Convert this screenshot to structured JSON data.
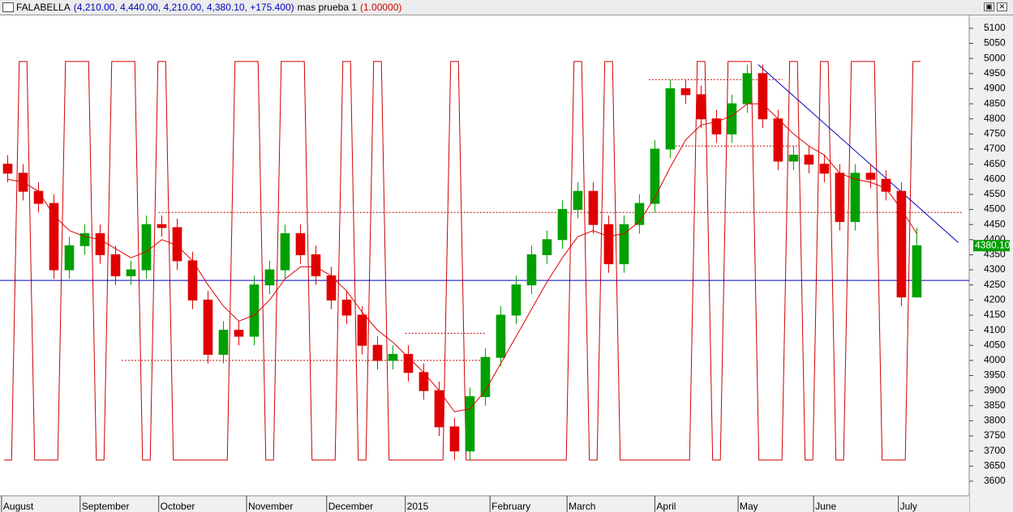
{
  "chart_data": {
    "type": "candlestick",
    "title": "FALABELLA",
    "ohlc_text": "(4,210.00, 4,440.00, 4,210.00, 4,380.10, +175.400)",
    "indicator_name": "mas prueba 1",
    "indicator_value": "(1.00000)",
    "open": [
      4650,
      4620,
      4560,
      4520,
      4300,
      4380,
      4420,
      4350,
      4280,
      4300,
      4450,
      4440,
      4330,
      4200,
      4020,
      4100,
      4080,
      4250,
      4300,
      4420,
      4350,
      4280,
      4200,
      4150,
      4050,
      4000,
      4020,
      3960,
      3900,
      3780,
      3700,
      3880,
      4010,
      4150,
      4250,
      4350,
      4400,
      4500,
      4560,
      4450,
      4320,
      4450,
      4520,
      4700,
      4900,
      4880,
      4800,
      4750,
      4850,
      4950,
      4800,
      4660,
      4680,
      4650,
      4620,
      4460,
      4620,
      4600,
      4560,
      4210
    ],
    "high": [
      4680,
      4650,
      4590,
      4550,
      4410,
      4450,
      4450,
      4380,
      4330,
      4480,
      4480,
      4470,
      4360,
      4230,
      4130,
      4130,
      4280,
      4330,
      4450,
      4450,
      4380,
      4310,
      4230,
      4180,
      4080,
      4050,
      4050,
      3990,
      3930,
      3810,
      3910,
      4040,
      4180,
      4280,
      4380,
      4430,
      4530,
      4590,
      4590,
      4480,
      4480,
      4550,
      4730,
      4930,
      4930,
      4910,
      4830,
      4880,
      4980,
      4980,
      4830,
      4710,
      4710,
      4680,
      4650,
      4650,
      4650,
      4630,
      4590,
      4440
    ],
    "low": [
      4590,
      4530,
      4490,
      4270,
      4270,
      4350,
      4320,
      4250,
      4250,
      4270,
      4410,
      4300,
      4170,
      3990,
      3990,
      4050,
      4050,
      4220,
      4270,
      4320,
      4250,
      4170,
      4120,
      4020,
      3970,
      3970,
      3930,
      3870,
      3750,
      3670,
      3670,
      3850,
      3980,
      4120,
      4220,
      4320,
      4370,
      4470,
      4420,
      4290,
      4290,
      4420,
      4490,
      4670,
      4850,
      4770,
      4720,
      4720,
      4820,
      4770,
      4630,
      4630,
      4620,
      4590,
      4430,
      4430,
      4570,
      4530,
      4180,
      4210
    ],
    "close": [
      4620,
      4560,
      4520,
      4300,
      4380,
      4420,
      4350,
      4280,
      4300,
      4450,
      4440,
      4330,
      4200,
      4020,
      4100,
      4080,
      4250,
      4300,
      4420,
      4350,
      4280,
      4200,
      4150,
      4050,
      4000,
      4020,
      3960,
      3900,
      3780,
      3700,
      3880,
      4010,
      4150,
      4250,
      4350,
      4400,
      4500,
      4560,
      4450,
      4320,
      4450,
      4520,
      4700,
      4900,
      4880,
      4800,
      4750,
      4850,
      4950,
      4800,
      4660,
      4680,
      4650,
      4620,
      4460,
      4620,
      4600,
      4560,
      4210,
      4380
    ],
    "up_color": "#00a000",
    "down_color": "#e00000",
    "ma": {
      "color": "#e00000",
      "values": [
        4600,
        4590,
        4560,
        4480,
        4430,
        4410,
        4400,
        4370,
        4340,
        4360,
        4400,
        4380,
        4330,
        4250,
        4180,
        4130,
        4150,
        4200,
        4270,
        4310,
        4310,
        4280,
        4230,
        4160,
        4100,
        4060,
        4010,
        3960,
        3900,
        3830,
        3840,
        3900,
        3990,
        4080,
        4170,
        4260,
        4340,
        4410,
        4430,
        4410,
        4420,
        4460,
        4540,
        4640,
        4730,
        4780,
        4790,
        4810,
        4850,
        4850,
        4800,
        4750,
        4710,
        4680,
        4620,
        4600,
        4590,
        4570,
        4500,
        4420
      ]
    },
    "signal": {
      "color": "#d00000",
      "values": [
        3670,
        4990,
        3670,
        3670,
        4990,
        4990,
        3670,
        4990,
        4990,
        3670,
        4990,
        3670,
        3670,
        3670,
        3670,
        4990,
        4990,
        3670,
        4990,
        4990,
        3670,
        3670,
        4990,
        3670,
        4990,
        3670,
        3670,
        3670,
        3670,
        4990,
        3670,
        3670,
        3670,
        3670,
        3670,
        3670,
        3670,
        4990,
        3670,
        4990,
        3670,
        3670,
        3670,
        3670,
        3670,
        4990,
        3670,
        4990,
        4990,
        3670,
        3670,
        4990,
        3670,
        4990,
        3670,
        4990,
        4990,
        3670,
        3670,
        4990
      ]
    },
    "xlim": [
      -0.5,
      62.4
    ],
    "ylim": [
      3557,
      5140
    ],
    "yticks": [
      3600,
      3650,
      3700,
      3750,
      3800,
      3850,
      3900,
      3950,
      4000,
      4050,
      4100,
      4150,
      4200,
      4250,
      4300,
      4350,
      4400,
      4450,
      4500,
      4550,
      4600,
      4650,
      4700,
      4750,
      4800,
      4850,
      4900,
      4950,
      5000,
      5050,
      5100
    ],
    "xticks": [
      {
        "value": -0.4,
        "label": "August"
      },
      {
        "value": 4.7,
        "label": "September"
      },
      {
        "value": 9.8,
        "label": "October"
      },
      {
        "value": 15.5,
        "label": "November"
      },
      {
        "value": 20.7,
        "label": "December"
      },
      {
        "value": 25.8,
        "label": "2015"
      },
      {
        "value": 31.3,
        "label": "February"
      },
      {
        "value": 36.3,
        "label": "March"
      },
      {
        "value": 42.0,
        "label": "April"
      },
      {
        "value": 47.4,
        "label": "May"
      },
      {
        "value": 52.3,
        "label": "June"
      },
      {
        "value": 57.8,
        "label": "July"
      }
    ],
    "hline": {
      "value": 4265,
      "color": "#0000c0"
    },
    "levels": [
      {
        "value": 4490,
        "xrange": [
          9.8,
          62.0
        ]
      },
      {
        "value": 4000,
        "xrange": [
          7.4,
          31.0
        ]
      },
      {
        "value": 4930,
        "xrange": [
          41.6,
          50.3
        ]
      },
      {
        "value": 4090,
        "xrange": [
          25.8,
          31.0
        ]
      },
      {
        "value": 4710,
        "xrange": [
          42.7,
          51.4
        ]
      }
    ],
    "level_color": "#c00000",
    "trendline": {
      "x": [
        48.7,
        61.7
      ],
      "y": [
        4980,
        4390
      ],
      "color": "#0000c0"
    },
    "last_price": {
      "value": 4380.1,
      "label": "4380.10"
    }
  }
}
